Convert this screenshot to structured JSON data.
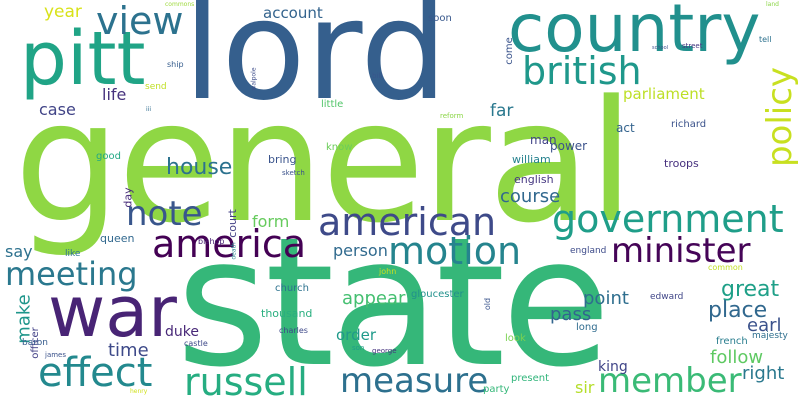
{
  "words": [
    {
      "id": "w-general",
      "text": "general",
      "color": "#8fd744"
    },
    {
      "id": "w-state",
      "text": "state",
      "color": "#35b779"
    },
    {
      "id": "w-lord",
      "text": "lord",
      "color": "#355f8d"
    },
    {
      "id": "w-country",
      "text": "country",
      "color": "#21908d"
    },
    {
      "id": "w-pitt",
      "text": "pitt",
      "color": "#20a486"
    },
    {
      "id": "w-war",
      "text": "war",
      "color": "#482475"
    },
    {
      "id": "w-british",
      "text": "british",
      "color": "#1f988b"
    },
    {
      "id": "w-view",
      "text": "view",
      "color": "#2c728e"
    },
    {
      "id": "w-year",
      "text": "year",
      "color": "#d8e219"
    },
    {
      "id": "w-account",
      "text": "account",
      "color": "#33638d"
    },
    {
      "id": "w-policy",
      "text": "policy",
      "color": "#c8e020"
    },
    {
      "id": "w-american",
      "text": "american",
      "color": "#3e4a89"
    },
    {
      "id": "w-government",
      "text": "government",
      "color": "#1f9e89"
    },
    {
      "id": "w-america",
      "text": "america",
      "color": "#440154"
    },
    {
      "id": "w-motion",
      "text": "motion",
      "color": "#25848e"
    },
    {
      "id": "w-minister",
      "text": "minister",
      "color": "#450457"
    },
    {
      "id": "w-meeting",
      "text": "meeting",
      "color": "#2a788e"
    },
    {
      "id": "w-effect",
      "text": "effect",
      "color": "#23898e"
    },
    {
      "id": "w-note",
      "text": "note",
      "color": "#39568c"
    },
    {
      "id": "w-house",
      "text": "house",
      "color": "#2c728e"
    },
    {
      "id": "w-life",
      "text": "life",
      "color": "#46327e"
    },
    {
      "id": "w-case",
      "text": "case",
      "color": "#414487"
    },
    {
      "id": "w-far",
      "text": "far",
      "color": "#2a788e"
    },
    {
      "id": "w-parliament",
      "text": "parliament",
      "color": "#bddf26"
    },
    {
      "id": "w-russell",
      "text": "russell",
      "color": "#26ad81"
    },
    {
      "id": "w-measure",
      "text": "measure",
      "color": "#2d708e"
    },
    {
      "id": "w-member",
      "text": "member",
      "color": "#3aba76"
    },
    {
      "id": "w-great",
      "text": "great",
      "color": "#1fa088"
    },
    {
      "id": "w-place",
      "text": "place",
      "color": "#31688e"
    },
    {
      "id": "w-earl",
      "text": "earl",
      "color": "#3b528b"
    },
    {
      "id": "w-follow",
      "text": "follow",
      "color": "#5ec962"
    },
    {
      "id": "w-right",
      "text": "right",
      "color": "#2a788e"
    },
    {
      "id": "w-time",
      "text": "time",
      "color": "#3e4a89"
    },
    {
      "id": "w-make",
      "text": "make",
      "color": "#1f968b"
    },
    {
      "id": "w-appear",
      "text": "appear",
      "color": "#44bf70"
    },
    {
      "id": "w-point",
      "text": "point",
      "color": "#2e6e8e"
    },
    {
      "id": "w-pass",
      "text": "pass",
      "color": "#32658e"
    },
    {
      "id": "w-course",
      "text": "course",
      "color": "#31688e"
    },
    {
      "id": "w-person",
      "text": "person",
      "color": "#306a8e"
    },
    {
      "id": "w-order",
      "text": "order",
      "color": "#1f9a8a"
    },
    {
      "id": "w-form",
      "text": "form",
      "color": "#66cb5d"
    },
    {
      "id": "w-say",
      "text": "say",
      "color": "#2d718e"
    },
    {
      "id": "w-duke",
      "text": "duke",
      "color": "#482878"
    },
    {
      "id": "w-sir",
      "text": "sir",
      "color": "#b5de2b"
    },
    {
      "id": "w-king",
      "text": "king",
      "color": "#404588"
    },
    {
      "id": "w-bring",
      "text": "bring",
      "color": "#3a548c"
    },
    {
      "id": "w-queen",
      "text": "queen",
      "color": "#31688e"
    },
    {
      "id": "w-man",
      "text": "man",
      "color": "#414487"
    },
    {
      "id": "w-power",
      "text": "power",
      "color": "#3b528b"
    },
    {
      "id": "w-act",
      "text": "act",
      "color": "#33638d"
    },
    {
      "id": "w-soon",
      "text": "soon",
      "color": "#38588c"
    },
    {
      "id": "w-come",
      "text": "come",
      "color": "#3a548c"
    },
    {
      "id": "w-william",
      "text": "william",
      "color": "#26828e"
    },
    {
      "id": "w-english",
      "text": "english",
      "color": "#453781"
    },
    {
      "id": "w-troops",
      "text": "troops",
      "color": "#46307e"
    },
    {
      "id": "w-richard",
      "text": "richard",
      "color": "#3b528b"
    },
    {
      "id": "w-know",
      "text": "know",
      "color": "#6ccd5a"
    },
    {
      "id": "w-good",
      "text": "good",
      "color": "#22a884"
    },
    {
      "id": "w-little",
      "text": "little",
      "color": "#52c569"
    },
    {
      "id": "w-day",
      "text": "day",
      "color": "#472c7a"
    },
    {
      "id": "w-court",
      "text": "court",
      "color": "#423f85"
    },
    {
      "id": "w-thousand",
      "text": "thousand",
      "color": "#29af7f"
    },
    {
      "id": "w-church",
      "text": "church",
      "color": "#2c728e"
    },
    {
      "id": "w-gloucester",
      "text": "gloucester",
      "color": "#21918c"
    },
    {
      "id": "w-england",
      "text": "england",
      "color": "#3e4c8a"
    },
    {
      "id": "w-edward",
      "text": "edward",
      "color": "#404688"
    },
    {
      "id": "w-long",
      "text": "long",
      "color": "#2f6b8e"
    },
    {
      "id": "w-look",
      "text": "look",
      "color": "#7ad151"
    },
    {
      "id": "w-present",
      "text": "present",
      "color": "#31b57b"
    },
    {
      "id": "w-party",
      "text": "party",
      "color": "#35b779"
    },
    {
      "id": "w-french",
      "text": "french",
      "color": "#287d8e"
    },
    {
      "id": "w-majesty",
      "text": "majesty",
      "color": "#2e6f8e"
    },
    {
      "id": "w-common",
      "text": "common",
      "color": "#c2df23"
    },
    {
      "id": "w-officer",
      "text": "officer",
      "color": "#424086"
    },
    {
      "id": "w-baron",
      "text": "baron",
      "color": "#365c8d"
    },
    {
      "id": "w-james",
      "text": "james",
      "color": "#3b528b"
    },
    {
      "id": "w-like",
      "text": "like",
      "color": "#2c728e"
    },
    {
      "id": "w-charles",
      "text": "charles",
      "color": "#3e4989"
    },
    {
      "id": "w-castle",
      "text": "castle",
      "color": "#3e4a89"
    },
    {
      "id": "w-son",
      "text": "son",
      "color": "#1f9e89"
    },
    {
      "id": "w-george",
      "text": "george",
      "color": "#46337f"
    },
    {
      "id": "w-old",
      "text": "old",
      "color": "#3a548c"
    },
    {
      "id": "w-john",
      "text": "john",
      "color": "#c8e020"
    },
    {
      "id": "w-bishop",
      "text": "bishop",
      "color": "#482173"
    },
    {
      "id": "w-death",
      "text": "death",
      "color": "#27808e"
    },
    {
      "id": "w-sketch",
      "text": "sketch",
      "color": "#3b528b"
    },
    {
      "id": "w-send",
      "text": "send",
      "color": "#c0df25"
    },
    {
      "id": "w-iii",
      "text": "iii",
      "color": "#2f6c8e"
    },
    {
      "id": "w-ship",
      "text": "ship",
      "color": "#365d8d"
    },
    {
      "id": "w-walpole",
      "text": "walpole",
      "color": "#3d4d8a"
    },
    {
      "id": "w-bill",
      "text": "bill",
      "color": "#39568c"
    },
    {
      "id": "w-reform",
      "text": "reform",
      "color": "#8bd646"
    },
    {
      "id": "w-street",
      "text": "street",
      "color": "#453781"
    },
    {
      "id": "w-tell",
      "text": "tell",
      "color": "#2c718e"
    },
    {
      "id": "w-land",
      "text": "land",
      "color": "#8bd646"
    },
    {
      "id": "w-commons",
      "text": "commons",
      "color": "#9dd93b"
    },
    {
      "id": "w-henry",
      "text": "henry",
      "color": "#d0e11c"
    },
    {
      "id": "w-school",
      "text": "school",
      "color": "#3b528b"
    }
  ]
}
